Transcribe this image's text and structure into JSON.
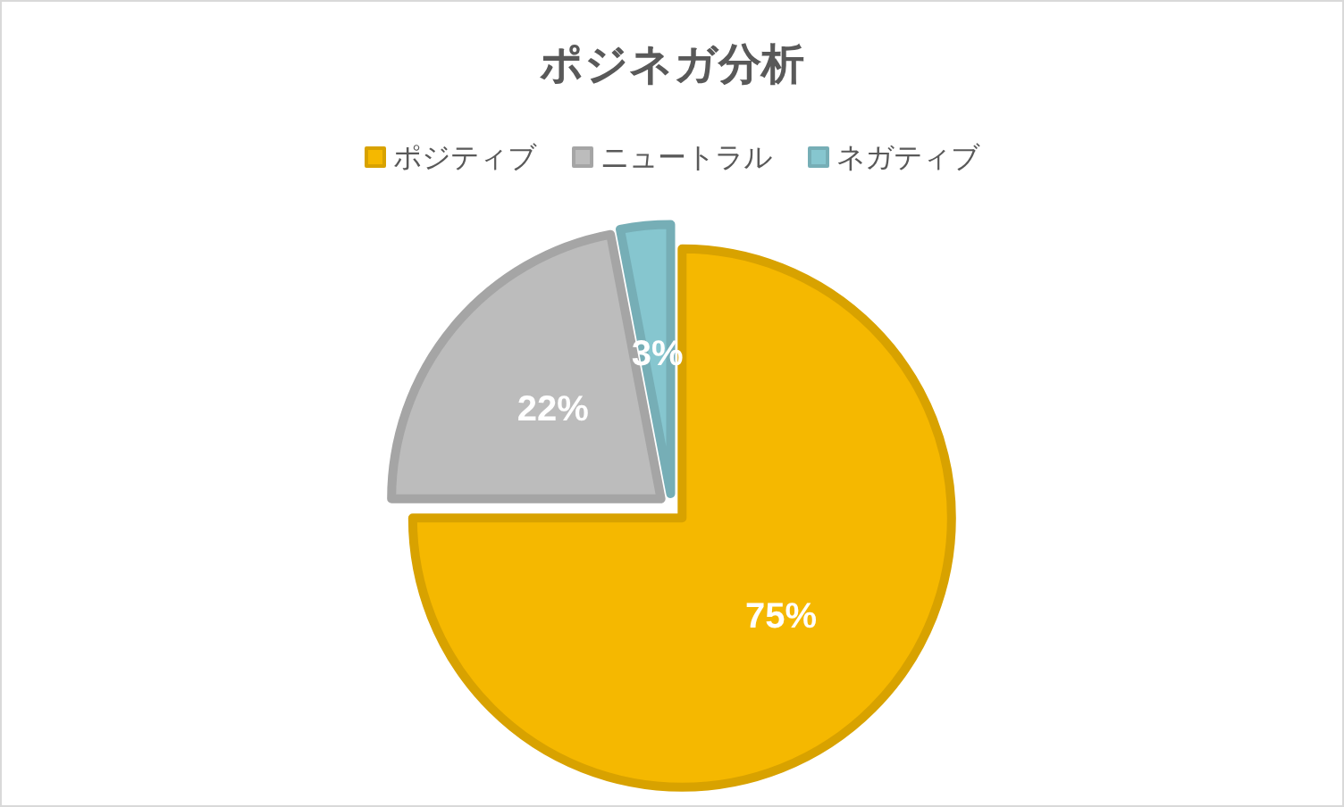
{
  "chart_data": {
    "type": "pie",
    "title": "ポジネガ分析",
    "categories": [
      "ポジティブ",
      "ニュートラル",
      "ネガティブ"
    ],
    "values": [
      75,
      22,
      3
    ],
    "colors": [
      "#f5b800",
      "#bcbcbc",
      "#86c6cf"
    ],
    "value_labels": [
      "75%",
      "22%",
      "3%"
    ],
    "legend": "top"
  }
}
